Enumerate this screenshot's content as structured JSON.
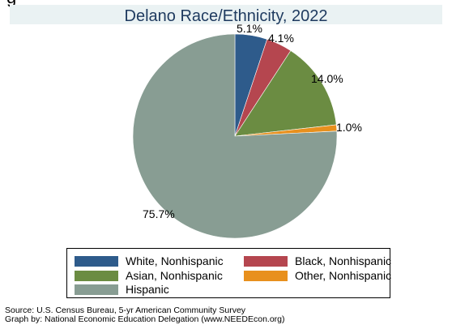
{
  "top_clipped_text": "g",
  "chart_data": {
    "type": "pie",
    "title": "Delano Race/Ethnicity, 2022",
    "slices": [
      {
        "label": "White, Nonhispanic",
        "value": 5.1,
        "display": "5.1%",
        "color": "#2e5b8b"
      },
      {
        "label": "Black, Nonhispanic",
        "value": 4.1,
        "display": "4.1%",
        "color": "#b5464f"
      },
      {
        "label": "Asian, Nonhispanic",
        "value": 14.0,
        "display": "14.0%",
        "color": "#6b8c42"
      },
      {
        "label": "Other, Nonhispanic",
        "value": 1.0,
        "display": "1.0%",
        "color": "#e8901d"
      },
      {
        "label": "Hispanic",
        "value": 75.7,
        "display": "75.7%",
        "color": "#889d93"
      }
    ],
    "start_angle_deg": 90,
    "direction": "clockwise",
    "legend_position": "bottom"
  },
  "footer": {
    "source": "Source:  U.S. Census Bureau, 5-yr American Community Survey",
    "credit": "Graph by: National Economic Education Delegation (www.NEEDEcon.org)"
  }
}
